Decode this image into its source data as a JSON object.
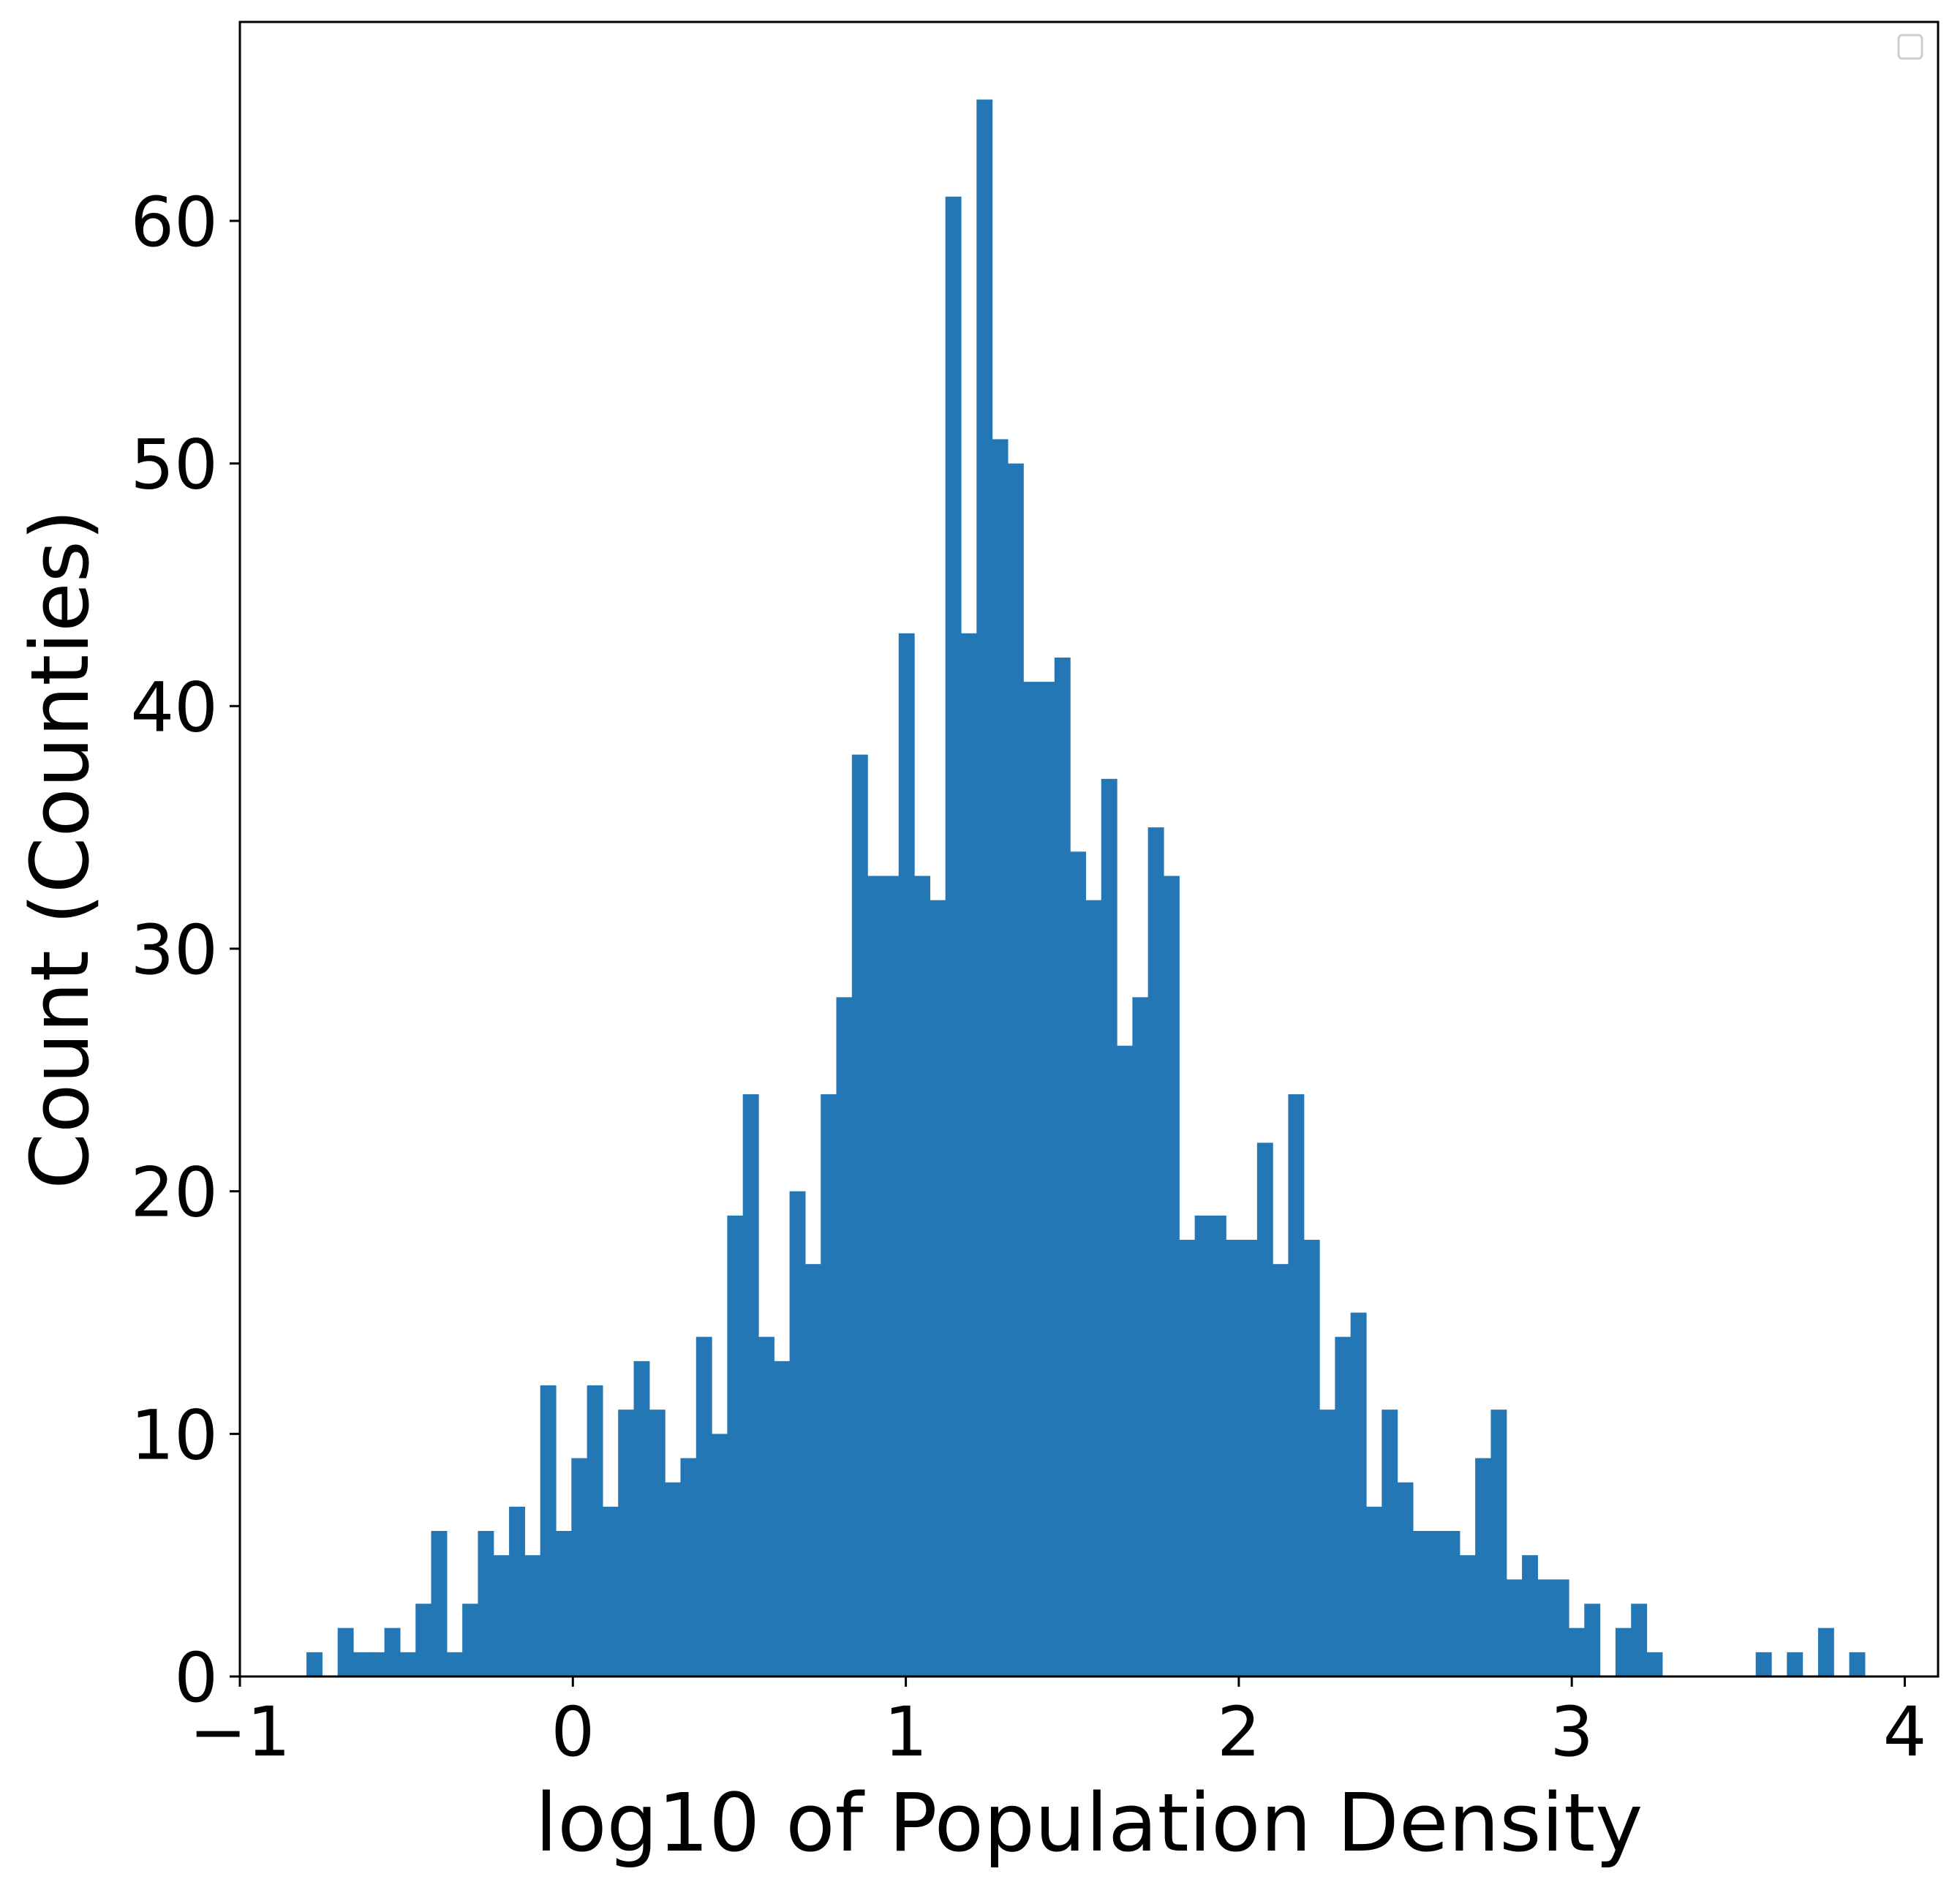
{
  "chart_data": {
    "type": "bar",
    "subtype": "histogram",
    "title": "",
    "xlabel": "log10 of Population Density",
    "ylabel": "Count (Counties)",
    "xlim": [
      -1,
      4.1
    ],
    "ylim": [
      0,
      68.2
    ],
    "xticks": [
      -1,
      0,
      1,
      2,
      3,
      4
    ],
    "xtick_labels": [
      "−1",
      "0",
      "1",
      "2",
      "3",
      "4"
    ],
    "yticks": [
      0,
      10,
      20,
      30,
      40,
      50,
      60
    ],
    "ytick_labels": [
      "0",
      "10",
      "20",
      "30",
      "40",
      "50",
      "60"
    ],
    "bin_start": -0.8,
    "bin_width": 0.0468,
    "counts": [
      1,
      0,
      2,
      1,
      1,
      2,
      1,
      3,
      6,
      1,
      3,
      6,
      5,
      7,
      5,
      12,
      6,
      9,
      12,
      7,
      11,
      13,
      11,
      8,
      9,
      14,
      10,
      19,
      24,
      14,
      13,
      20,
      17,
      24,
      28,
      38,
      33,
      33,
      43,
      33,
      32,
      61,
      43,
      65,
      51,
      50,
      41,
      41,
      42,
      34,
      32,
      37,
      26,
      28,
      35,
      33,
      18,
      19,
      19,
      18,
      18,
      22,
      17,
      24,
      18,
      11,
      14,
      15,
      7,
      11,
      8,
      6,
      6,
      6,
      5,
      9,
      11,
      4,
      5,
      4,
      4,
      2,
      3,
      0,
      2,
      3,
      1,
      0,
      0,
      0,
      0,
      0,
      0,
      1,
      0,
      1,
      0,
      2,
      0,
      1
    ],
    "color": "#2377b4",
    "grid": false,
    "legend": "top-right (empty)"
  }
}
